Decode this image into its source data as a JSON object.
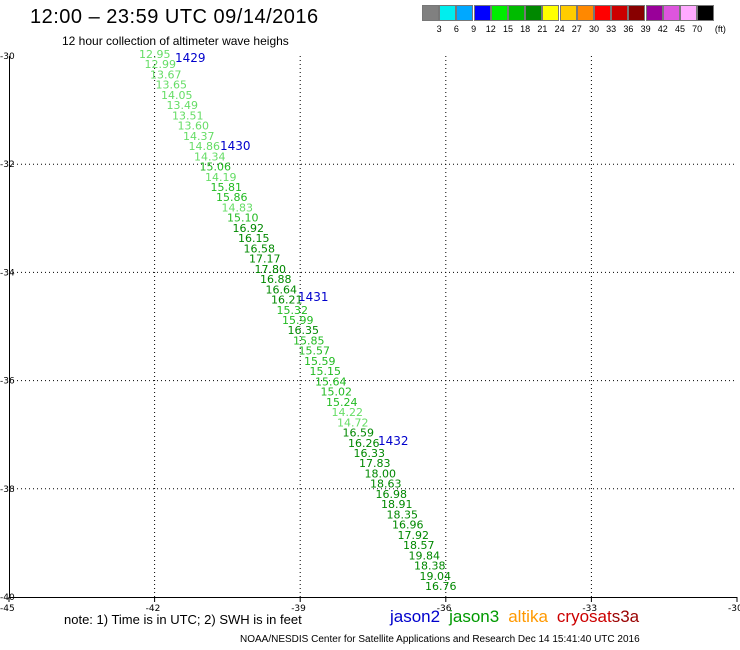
{
  "header": {
    "title": "12:00 – 23:59 UTC 09/14/2016",
    "subtitle": "12 hour collection of altimeter wave heighs"
  },
  "color_scale": {
    "unit": "(ft)",
    "bins": [
      {
        "label": "3",
        "color": "#808080"
      },
      {
        "label": "6",
        "color": "#00eeee"
      },
      {
        "label": "9",
        "color": "#00a8ff"
      },
      {
        "label": "12",
        "color": "#0000ff"
      },
      {
        "label": "15",
        "color": "#00ee00"
      },
      {
        "label": "18",
        "color": "#00bb00"
      },
      {
        "label": "21",
        "color": "#008800"
      },
      {
        "label": "24",
        "color": "#ffff00"
      },
      {
        "label": "27",
        "color": "#ffcc00"
      },
      {
        "label": "30",
        "color": "#ff8800"
      },
      {
        "label": "33",
        "color": "#ff0000"
      },
      {
        "label": "36",
        "color": "#cc0000"
      },
      {
        "label": "39",
        "color": "#880000"
      },
      {
        "label": "42",
        "color": "#990099"
      },
      {
        "label": "45",
        "color": "#dd55dd"
      },
      {
        "label": "70",
        "color": "#ffaaff"
      },
      {
        "label": "",
        "color": "#000000"
      }
    ]
  },
  "map": {
    "lon_range": [
      -45,
      -30
    ],
    "lat_range": [
      -40,
      -30
    ],
    "x_ticks": [
      "-45",
      "-42",
      "-39",
      "-36",
      "-33",
      "-30"
    ],
    "y_ticks": [
      "-30",
      "-32",
      "-34",
      "-36",
      "-38",
      "-40"
    ],
    "colors": {
      "light": "#66dd66",
      "mid": "#22bb22",
      "dark": "#008800"
    },
    "pass_labels": [
      "1429",
      "1430",
      "1431",
      "1432"
    ],
    "points": [
      "12.95",
      "12.99",
      "13.67",
      "13.65",
      "14.05",
      "13.49",
      "13.51",
      "13.60",
      "14.37",
      "14.86",
      "14.34",
      "15.06",
      "14.19",
      "15.81",
      "15.86",
      "14.83",
      "15.10",
      "16.92",
      "16.15",
      "16.58",
      "17.17",
      "17.80",
      "16.88",
      "16.64",
      "16.21",
      "15.32",
      "15.99",
      "16.35",
      "15.85",
      "15.57",
      "15.59",
      "15.15",
      "15.64",
      "15.02",
      "15.24",
      "14.22",
      "14.72",
      "16.59",
      "16.26",
      "16.33",
      "17.83",
      "18.00",
      "18.63",
      "16.98",
      "18.91",
      "18.35",
      "16.96",
      "17.92",
      "18.57",
      "19.84",
      "18.38",
      "19.04",
      "16.76"
    ]
  },
  "footer": {
    "note": "note: 1) Time is in UTC; 2) SWH is in feet",
    "satellites": [
      {
        "name": "jason2",
        "color": "#0000cc"
      },
      {
        "name": "jason3",
        "color": "#009900"
      },
      {
        "name": "altika",
        "color": "#ff9900"
      },
      {
        "name": "cryosat",
        "color": "#cc0000"
      },
      {
        "name": "s3a",
        "color": "#990000"
      }
    ],
    "credit": "NOAA/NESDIS Center for Satellite Applications and Research    Dec 14 15:41:40 UTC 2016"
  }
}
